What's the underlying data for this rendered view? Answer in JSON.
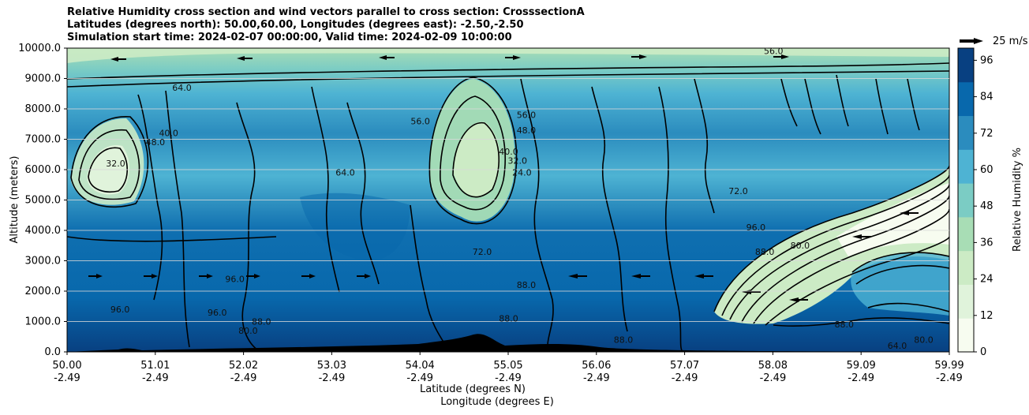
{
  "titles": [
    "Relative Humidity cross section and wind vectors parallel to cross section: CrosssectionA",
    "Latitudes (degrees north): 50.00,60.00, Longitudes (degrees east): -2.50,-2.50",
    "Simulation start time: 2024-02-07 00:00:00, Valid time: 2024-02-09 10:00:00"
  ],
  "chart_data": {
    "type": "heatmap",
    "xlabel": "Latitude (degrees N)",
    "xlabel2": "Longitude (degrees E)",
    "ylabel": "Altitude (meters)",
    "ylim": [
      0,
      10000
    ],
    "yticks": [
      "0.0",
      "1000.0",
      "2000.0",
      "3000.0",
      "4000.0",
      "5000.0",
      "6000.0",
      "7000.0",
      "8000.0",
      "9000.0",
      "10000.0"
    ],
    "xticks_lat": [
      "50.00",
      "51.01",
      "52.02",
      "53.03",
      "54.04",
      "55.05",
      "56.06",
      "57.07",
      "58.08",
      "59.09",
      "59.99"
    ],
    "xticks_lon": [
      "-2.49",
      "-2.49",
      "-2.49",
      "-2.49",
      "-2.49",
      "-2.49",
      "-2.49",
      "-2.49",
      "-2.49",
      "-2.49",
      "-2.49"
    ],
    "colorbar": {
      "label": "Relative Humidity %",
      "ticks": [
        "0",
        "12",
        "24",
        "36",
        "48",
        "60",
        "72",
        "84",
        "96"
      ],
      "range": [
        0,
        100
      ],
      "colors": [
        "#f7fcf0",
        "#e0f3db",
        "#ccebc5",
        "#a8ddb5",
        "#7bccc4",
        "#4eb3d3",
        "#2b8cbe",
        "#0868ac",
        "#084081"
      ]
    },
    "vector_key": "25 m/s",
    "grid_y": true,
    "contour_labels": [
      {
        "text": "32.0",
        "x": 50.55,
        "y": 6100
      },
      {
        "text": "64.0",
        "x": 51.3,
        "y": 8600
      },
      {
        "text": "48.0",
        "x": 51.0,
        "y": 6800
      },
      {
        "text": "40.0",
        "x": 51.15,
        "y": 7100
      },
      {
        "text": "96.0",
        "x": 51.7,
        "y": 1200
      },
      {
        "text": "88.0",
        "x": 52.2,
        "y": 900
      },
      {
        "text": "80.0",
        "x": 52.05,
        "y": 600
      },
      {
        "text": "96.0",
        "x": 50.6,
        "y": 1300
      },
      {
        "text": "96.0",
        "x": 51.9,
        "y": 2300
      },
      {
        "text": "64.0",
        "x": 53.15,
        "y": 5800
      },
      {
        "text": "56.0",
        "x": 54.0,
        "y": 7500
      },
      {
        "text": "40.0",
        "x": 55.0,
        "y": 6500
      },
      {
        "text": "32.0",
        "x": 55.1,
        "y": 6200
      },
      {
        "text": "24.0",
        "x": 55.15,
        "y": 5800
      },
      {
        "text": "56.0",
        "x": 55.2,
        "y": 7700
      },
      {
        "text": "48.0",
        "x": 55.2,
        "y": 7200
      },
      {
        "text": "72.0",
        "x": 54.7,
        "y": 3200
      },
      {
        "text": "88.0",
        "x": 55.0,
        "y": 1000
      },
      {
        "text": "88.0",
        "x": 55.2,
        "y": 2100
      },
      {
        "text": "72.0",
        "x": 57.6,
        "y": 5200
      },
      {
        "text": "96.0",
        "x": 57.8,
        "y": 4000
      },
      {
        "text": "88.0",
        "x": 57.9,
        "y": 3200
      },
      {
        "text": "80.0",
        "x": 58.3,
        "y": 3400
      },
      {
        "text": "88.0",
        "x": 58.8,
        "y": 800
      },
      {
        "text": "64.0",
        "x": 59.4,
        "y": 100
      },
      {
        "text": "80.0",
        "x": 59.7,
        "y": 300
      },
      {
        "text": "56.0",
        "x": 58.0,
        "y": 9800
      },
      {
        "text": "88.0",
        "x": 56.3,
        "y": 300
      }
    ]
  }
}
